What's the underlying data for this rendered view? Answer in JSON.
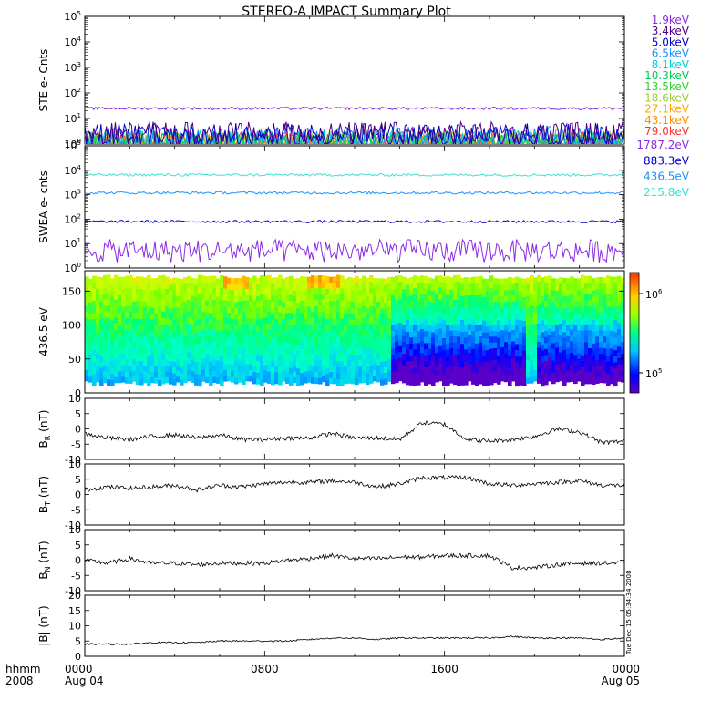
{
  "title": "STEREO-A IMPACT Summary Plot",
  "footer": {
    "time_label": "hhmm",
    "year_label": "2008",
    "x_ticks": [
      {
        "label": "0000",
        "sub": "Aug 04",
        "hour": 0
      },
      {
        "label": "0800",
        "sub": "",
        "hour": 8
      },
      {
        "label": "1600",
        "sub": "",
        "hour": 16
      },
      {
        "label": "0000",
        "sub": "Aug 05",
        "hour": 24
      }
    ]
  },
  "side_stamp": "Tue Dec 15 05:34:34 2008",
  "colorbar": {
    "ticks": [
      "10",
      "10"
    ],
    "exponents": [
      "6",
      "5"
    ]
  },
  "chart_data": [
    {
      "type": "line",
      "panel": "ste",
      "ylabel": "STE e- Cnts",
      "scale": "log",
      "ylim_exp": [
        0,
        5
      ],
      "tick_base": "10",
      "tick_exponents": [
        "0",
        "1",
        "2",
        "3",
        "4",
        "5"
      ],
      "x_range_hours": [
        0,
        24
      ],
      "series": [
        {
          "name": "1.9keV",
          "color": "#8a2be2",
          "level": 25
        },
        {
          "name": "3.4keV",
          "color": "#4b0082",
          "level": 2.5
        },
        {
          "name": "5.0keV",
          "color": "#0000cd",
          "level": 2.2
        },
        {
          "name": "6.5keV",
          "color": "#1e90ff",
          "level": 1.6
        },
        {
          "name": "8.1keV",
          "color": "#00ced1",
          "level": 1.3
        },
        {
          "name": "10.3keV",
          "color": "#00c957",
          "level": 1.1
        },
        {
          "name": "13.5keV",
          "color": "#32cd32",
          "level": 1.05
        },
        {
          "name": "18.6keV",
          "color": "#9acd32",
          "level": 1.0
        },
        {
          "name": "27.1keV",
          "color": "#ffa500",
          "level": 1.0
        },
        {
          "name": "43.1keV",
          "color": "#ff8c00",
          "level": 1.0
        },
        {
          "name": "79.0keV",
          "color": "#ff3030",
          "level": 1.0
        }
      ]
    },
    {
      "type": "line",
      "panel": "swea",
      "ylabel": "SWEA e- cnts",
      "scale": "log",
      "ylim_exp": [
        0,
        5
      ],
      "tick_base": "10",
      "tick_exponents": [
        "0",
        "1",
        "2",
        "3",
        "4",
        "5"
      ],
      "x_range_hours": [
        0,
        24
      ],
      "series": [
        {
          "name": "1787.2eV",
          "color": "#8a2be2",
          "level": 5
        },
        {
          "name": "883.3eV",
          "color": "#0000cd",
          "level": 80
        },
        {
          "name": "436.5eV",
          "color": "#1e90ff",
          "level": 1200
        },
        {
          "name": "215.8eV",
          "color": "#40e0d0",
          "level": 6500
        }
      ]
    },
    {
      "type": "heatmap",
      "panel": "pad",
      "ylabel": "436.5 eV",
      "ylim": [
        0,
        180
      ],
      "yticks": [
        0,
        50,
        100,
        150
      ],
      "x_range_hours": [
        0,
        24
      ]
    },
    {
      "type": "line",
      "panel": "br",
      "ylabel_main": "B",
      "ylabel_sub": "R",
      "ylabel_unit": " (nT)",
      "ylim": [
        -10,
        10
      ],
      "yticks": [
        10,
        5,
        0,
        -5,
        -10
      ],
      "x_range_hours": [
        0,
        24
      ],
      "x": [
        0,
        1,
        2,
        3,
        4,
        5,
        6,
        7,
        8,
        9,
        10,
        11,
        12,
        13,
        14,
        15,
        16,
        17,
        18,
        19,
        20,
        21,
        22,
        23,
        24
      ],
      "values": [
        -1.5,
        -3,
        -3.5,
        -2.5,
        -2,
        -3,
        -2,
        -3.5,
        -3.5,
        -3,
        -3,
        -1.5,
        -3,
        -3,
        -3.5,
        2,
        1.5,
        -3.5,
        -4,
        -3.5,
        -2.5,
        0,
        -1,
        -4.5,
        -4
      ]
    },
    {
      "type": "line",
      "panel": "bt",
      "ylabel_main": "B",
      "ylabel_sub": "T",
      "ylabel_unit": " (nT)",
      "ylim": [
        -10,
        10
      ],
      "yticks": [
        10,
        5,
        0,
        -5,
        -10
      ],
      "x_range_hours": [
        0,
        24
      ],
      "x": [
        0,
        1,
        2,
        3,
        4,
        5,
        6,
        7,
        8,
        9,
        10,
        11,
        12,
        13,
        14,
        15,
        16,
        17,
        18,
        19,
        20,
        21,
        22,
        23,
        24
      ],
      "values": [
        1.5,
        2.5,
        2,
        2.5,
        3,
        1.5,
        3,
        2.5,
        3.5,
        4,
        4,
        4.5,
        4,
        2.5,
        3.5,
        5.5,
        5.5,
        5.5,
        3.5,
        3,
        3.5,
        4,
        4.5,
        3,
        3
      ]
    },
    {
      "type": "line",
      "panel": "bn",
      "ylabel_main": "B",
      "ylabel_sub": "N",
      "ylabel_unit": " (nT)",
      "ylim": [
        -10,
        10
      ],
      "yticks": [
        10,
        5,
        0,
        -5,
        -10
      ],
      "x_range_hours": [
        0,
        24
      ],
      "x": [
        0,
        1,
        2,
        3,
        4,
        5,
        6,
        7,
        8,
        9,
        10,
        11,
        12,
        13,
        14,
        15,
        16,
        17,
        18,
        19,
        20,
        21,
        22,
        23,
        24
      ],
      "values": [
        0,
        -1,
        0.5,
        -1,
        -1,
        -1.5,
        -1,
        -1,
        -1,
        0,
        0.5,
        1.5,
        0.5,
        0.5,
        1,
        1,
        1.5,
        1.5,
        1.5,
        -2.5,
        -2.5,
        -1.5,
        -1,
        -1,
        -1
      ]
    },
    {
      "type": "line",
      "panel": "bmag",
      "ylabel": "|B| (nT)",
      "ylim": [
        0,
        20
      ],
      "yticks": [
        20,
        15,
        10,
        5,
        0
      ],
      "x_range_hours": [
        0,
        24
      ],
      "x": [
        0,
        1,
        2,
        3,
        4,
        5,
        6,
        7,
        8,
        9,
        10,
        11,
        12,
        13,
        14,
        15,
        16,
        17,
        18,
        19,
        20,
        21,
        22,
        23,
        24
      ],
      "values": [
        4,
        4,
        4,
        4.5,
        4.5,
        4.5,
        5,
        5,
        5,
        5,
        5.5,
        6,
        6,
        5.5,
        6,
        6,
        6,
        6,
        6,
        6.5,
        6,
        6,
        6,
        5.5,
        6
      ]
    }
  ]
}
